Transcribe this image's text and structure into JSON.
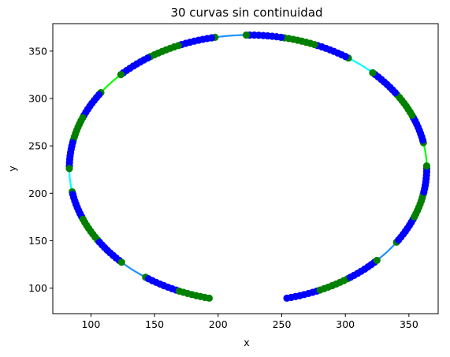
{
  "chart_data": {
    "type": "scatter",
    "title": "30 curvas sin continuidad",
    "xlabel": "x",
    "ylabel": "y",
    "xlim": [
      70,
      373
    ],
    "ylim": [
      73,
      379
    ],
    "xticks": [
      100,
      150,
      200,
      250,
      300,
      350
    ],
    "yticks": [
      100,
      150,
      200,
      250,
      300,
      350
    ],
    "grid": false,
    "ellipse": {
      "cx": 223.5,
      "cy": 226.5,
      "rx": 140.5,
      "ry": 140.5
    },
    "gap_degrees": [
      258,
      282
    ],
    "curve_count": 30,
    "colors": {
      "point_blue": "#0000ff",
      "point_green": "#008000",
      "line_green": "#00ff00",
      "line_cyan": "#00ffff",
      "line_lightblue": "#1e90ff"
    }
  }
}
